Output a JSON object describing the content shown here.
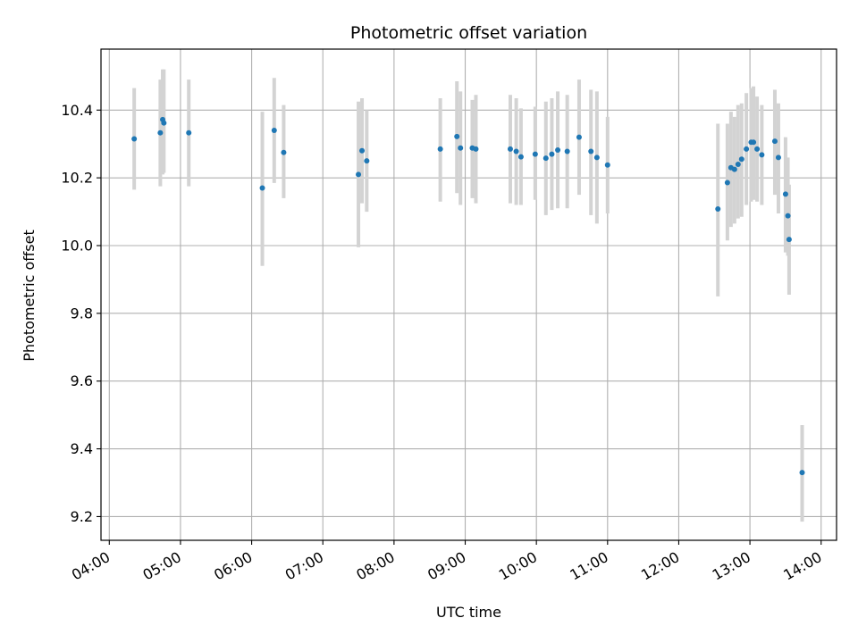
{
  "chart_data": {
    "type": "scatter",
    "title": "Photometric offset variation",
    "xlabel": "UTC time",
    "ylabel": "Photometric offset",
    "xlim": [
      "03:53",
      "14:13"
    ],
    "ylim": [
      9.13,
      10.58
    ],
    "xticks": [
      "04:00",
      "05:00",
      "06:00",
      "07:00",
      "08:00",
      "09:00",
      "10:00",
      "11:00",
      "12:00",
      "13:00",
      "14:00"
    ],
    "yticks": [
      "9.2",
      "9.4",
      "9.6",
      "9.8",
      "10.0",
      "10.2",
      "10.4"
    ],
    "grid": true,
    "colors": {
      "marker": "#1f77b4",
      "errorbar": "#d3d3d3",
      "grid": "#b0b0b0"
    },
    "series": [
      {
        "x": [
          "04:21",
          "04:43",
          "04:45",
          "04:46",
          "05:07",
          "06:09",
          "06:19",
          "06:27",
          "07:30",
          "07:33",
          "07:37",
          "08:39",
          "08:53",
          "08:56",
          "09:06",
          "09:09",
          "09:38",
          "09:43",
          "09:47",
          "09:59",
          "10:08",
          "10:13",
          "10:18",
          "10:26",
          "10:36",
          "10:46",
          "10:51",
          "11:00",
          "12:33",
          "12:41",
          "12:44",
          "12:47",
          "12:50",
          "12:53",
          "12:57",
          "13:01",
          "13:03",
          "13:06",
          "13:10",
          "13:21",
          "13:24",
          "13:30",
          "13:32",
          "13:33",
          "13:44"
        ],
        "y": [
          10.315,
          10.333,
          10.372,
          10.362,
          10.333,
          10.17,
          10.34,
          10.275,
          10.21,
          10.28,
          10.25,
          10.285,
          10.322,
          10.288,
          10.288,
          10.285,
          10.285,
          10.278,
          10.262,
          10.27,
          10.258,
          10.27,
          10.282,
          10.278,
          10.32,
          10.278,
          10.26,
          10.238,
          10.108,
          10.186,
          10.23,
          10.225,
          10.24,
          10.255,
          10.285,
          10.305,
          10.305,
          10.285,
          10.268,
          10.308,
          10.26,
          10.152,
          10.088,
          10.018,
          9.33
        ],
        "yerr_low": [
          10.165,
          10.175,
          10.21,
          10.215,
          10.175,
          9.94,
          10.185,
          10.14,
          9.995,
          10.125,
          10.1,
          10.13,
          10.155,
          10.12,
          10.14,
          10.125,
          10.125,
          10.12,
          10.12,
          10.135,
          10.09,
          10.105,
          10.11,
          10.11,
          10.15,
          10.09,
          10.065,
          10.095,
          9.85,
          10.015,
          10.055,
          10.065,
          10.08,
          10.085,
          10.12,
          10.13,
          10.135,
          10.13,
          10.12,
          10.15,
          10.095,
          9.98,
          9.97,
          9.855,
          9.185
        ],
        "yerr_high": [
          10.465,
          10.49,
          10.52,
          10.52,
          10.49,
          10.395,
          10.495,
          10.415,
          10.425,
          10.435,
          10.4,
          10.435,
          10.485,
          10.455,
          10.43,
          10.445,
          10.445,
          10.435,
          10.405,
          10.41,
          10.425,
          10.435,
          10.455,
          10.445,
          10.49,
          10.46,
          10.455,
          10.38,
          10.36,
          10.36,
          10.395,
          10.38,
          10.415,
          10.42,
          10.45,
          10.465,
          10.47,
          10.44,
          10.415,
          10.46,
          10.42,
          10.32,
          10.26,
          10.18,
          9.47
        ]
      }
    ]
  }
}
